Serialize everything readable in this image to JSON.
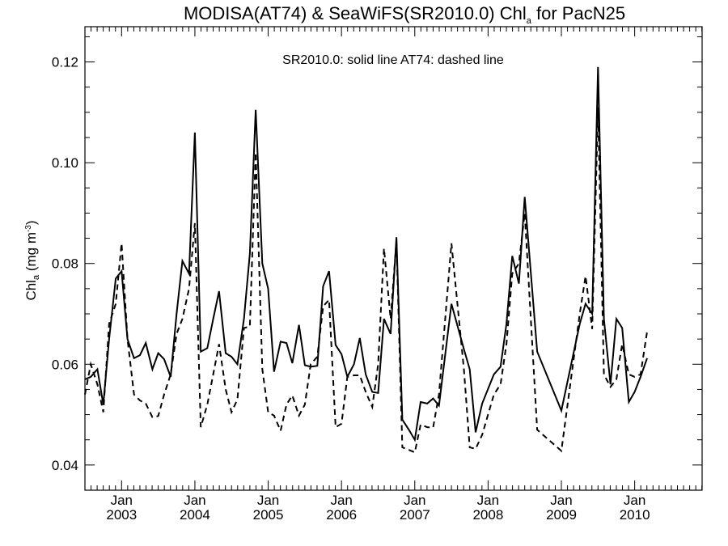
{
  "chart_data": {
    "type": "line",
    "title": {
      "main": "MODISA(AT74) & SeaWiFS(SR2010.0)  Chl",
      "sub": "a",
      "rest": " for PacN25"
    },
    "annotation": "SR2010.0: solid line   AT74: dashed line",
    "ylabel": {
      "main": "Chl",
      "sub": "a",
      "unit": " (mg m",
      "sup": "-3",
      "close": ")"
    },
    "xlim": [
      2002.5,
      2010.92
    ],
    "ylim": [
      0.035,
      0.127
    ],
    "y_ticks": [
      {
        "value": 0.04,
        "label": "0.04"
      },
      {
        "value": 0.06,
        "label": "0.06"
      },
      {
        "value": 0.08,
        "label": "0.08"
      },
      {
        "value": 0.1,
        "label": "0.10"
      },
      {
        "value": 0.12,
        "label": "0.12"
      }
    ],
    "x_ticks": [
      {
        "value": 2003.0,
        "month": "Jan",
        "year": "2003"
      },
      {
        "value": 2004.0,
        "month": "Jan",
        "year": "2004"
      },
      {
        "value": 2005.0,
        "month": "Jan",
        "year": "2005"
      },
      {
        "value": 2006.0,
        "month": "Jan",
        "year": "2006"
      },
      {
        "value": 2007.0,
        "month": "Jan",
        "year": "2007"
      },
      {
        "value": 2008.0,
        "month": "Jan",
        "year": "2008"
      },
      {
        "value": 2009.0,
        "month": "Jan",
        "year": "2009"
      },
      {
        "value": 2010.0,
        "month": "Jan",
        "year": "2010"
      }
    ],
    "series": [
      {
        "name": "SR2010.0",
        "style": "solid",
        "color": "#000000",
        "points": [
          [
            2002.5,
            0.057
          ],
          [
            2002.58,
            0.0575
          ],
          [
            2002.67,
            0.059
          ],
          [
            2002.75,
            0.052
          ],
          [
            2002.83,
            0.065
          ],
          [
            2002.92,
            0.077
          ],
          [
            2003.0,
            0.0785
          ],
          [
            2003.08,
            0.065
          ],
          [
            2003.17,
            0.0612
          ],
          [
            2003.25,
            0.0618
          ],
          [
            2003.33,
            0.0642
          ],
          [
            2003.42,
            0.059
          ],
          [
            2003.5,
            0.0622
          ],
          [
            2003.58,
            0.061
          ],
          [
            2003.67,
            0.0575
          ],
          [
            2003.75,
            0.07
          ],
          [
            2003.83,
            0.0805
          ],
          [
            2003.92,
            0.078
          ],
          [
            2004.0,
            0.106
          ],
          [
            2004.08,
            0.0625
          ],
          [
            2004.17,
            0.0632
          ],
          [
            2004.25,
            0.069
          ],
          [
            2004.33,
            0.0745
          ],
          [
            2004.42,
            0.0622
          ],
          [
            2004.5,
            0.0615
          ],
          [
            2004.58,
            0.06
          ],
          [
            2004.67,
            0.069
          ],
          [
            2004.75,
            0.082
          ],
          [
            2004.83,
            0.1105
          ],
          [
            2004.92,
            0.08
          ],
          [
            2005.0,
            0.075
          ],
          [
            2005.08,
            0.0585
          ],
          [
            2005.17,
            0.0645
          ],
          [
            2005.25,
            0.0642
          ],
          [
            2005.33,
            0.0602
          ],
          [
            2005.42,
            0.0678
          ],
          [
            2005.5,
            0.0598
          ],
          [
            2005.58,
            0.0595
          ],
          [
            2005.67,
            0.0597
          ],
          [
            2005.75,
            0.0755
          ],
          [
            2005.83,
            0.0785
          ],
          [
            2005.92,
            0.0638
          ],
          [
            2006.0,
            0.062
          ],
          [
            2006.08,
            0.0575
          ],
          [
            2006.17,
            0.06
          ],
          [
            2006.25,
            0.0652
          ],
          [
            2006.33,
            0.058
          ],
          [
            2006.42,
            0.0545
          ],
          [
            2006.5,
            0.0543
          ],
          [
            2006.58,
            0.069
          ],
          [
            2006.67,
            0.066
          ],
          [
            2006.75,
            0.0852
          ],
          [
            2006.83,
            0.049
          ],
          [
            2006.92,
            0.047
          ],
          [
            2007.0,
            0.045
          ],
          [
            2007.08,
            0.0525
          ],
          [
            2007.17,
            0.0522
          ],
          [
            2007.25,
            0.0532
          ],
          [
            2007.33,
            0.0518
          ],
          [
            2007.5,
            0.072
          ],
          [
            2007.67,
            0.063
          ],
          [
            2007.75,
            0.059
          ],
          [
            2007.83,
            0.0465
          ],
          [
            2007.92,
            0.0522
          ],
          [
            2008.08,
            0.058
          ],
          [
            2008.17,
            0.0595
          ],
          [
            2008.25,
            0.068
          ],
          [
            2008.33,
            0.0815
          ],
          [
            2008.42,
            0.076
          ],
          [
            2008.5,
            0.0932
          ],
          [
            2008.67,
            0.0625
          ],
          [
            2009.0,
            0.0508
          ],
          [
            2009.25,
            0.068
          ],
          [
            2009.33,
            0.072
          ],
          [
            2009.42,
            0.07
          ],
          [
            2009.5,
            0.119
          ],
          [
            2009.58,
            0.069
          ],
          [
            2009.67,
            0.056
          ],
          [
            2009.75,
            0.069
          ],
          [
            2009.83,
            0.0672
          ],
          [
            2009.92,
            0.0525
          ],
          [
            2010.0,
            0.0545
          ],
          [
            2010.08,
            0.0575
          ],
          [
            2010.17,
            0.0612
          ]
        ]
      },
      {
        "name": "AT74",
        "style": "dashed",
        "color": "#000000",
        "points": [
          [
            2002.5,
            0.054
          ],
          [
            2002.58,
            0.06
          ],
          [
            2002.67,
            0.056
          ],
          [
            2002.75,
            0.0505
          ],
          [
            2002.83,
            0.068
          ],
          [
            2002.92,
            0.072
          ],
          [
            2003.0,
            0.084
          ],
          [
            2003.08,
            0.065
          ],
          [
            2003.17,
            0.054
          ],
          [
            2003.25,
            0.0528
          ],
          [
            2003.33,
            0.0522
          ],
          [
            2003.42,
            0.0495
          ],
          [
            2003.5,
            0.0497
          ],
          [
            2003.58,
            0.054
          ],
          [
            2003.67,
            0.058
          ],
          [
            2003.75,
            0.066
          ],
          [
            2003.83,
            0.069
          ],
          [
            2003.92,
            0.075
          ],
          [
            2004.0,
            0.088
          ],
          [
            2004.08,
            0.0475
          ],
          [
            2004.17,
            0.052
          ],
          [
            2004.25,
            0.058
          ],
          [
            2004.33,
            0.064
          ],
          [
            2004.42,
            0.055
          ],
          [
            2004.5,
            0.0505
          ],
          [
            2004.58,
            0.053
          ],
          [
            2004.67,
            0.0672
          ],
          [
            2004.75,
            0.0675
          ],
          [
            2004.83,
            0.102
          ],
          [
            2004.92,
            0.059
          ],
          [
            2005.0,
            0.0505
          ],
          [
            2005.08,
            0.0498
          ],
          [
            2005.17,
            0.0468
          ],
          [
            2005.25,
            0.052
          ],
          [
            2005.33,
            0.0538
          ],
          [
            2005.42,
            0.0498
          ],
          [
            2005.5,
            0.052
          ],
          [
            2005.58,
            0.06
          ],
          [
            2005.67,
            0.0615
          ],
          [
            2005.75,
            0.0715
          ],
          [
            2005.83,
            0.0728
          ],
          [
            2005.92,
            0.0475
          ],
          [
            2006.0,
            0.0482
          ],
          [
            2006.08,
            0.0575
          ],
          [
            2006.17,
            0.0578
          ],
          [
            2006.25,
            0.0578
          ],
          [
            2006.33,
            0.0545
          ],
          [
            2006.42,
            0.0515
          ],
          [
            2006.5,
            0.06
          ],
          [
            2006.58,
            0.083
          ],
          [
            2006.67,
            0.069
          ],
          [
            2006.75,
            0.0845
          ],
          [
            2006.83,
            0.0435
          ],
          [
            2006.92,
            0.043
          ],
          [
            2007.0,
            0.0425
          ],
          [
            2007.08,
            0.048
          ],
          [
            2007.17,
            0.0475
          ],
          [
            2007.25,
            0.0474
          ],
          [
            2007.33,
            0.054
          ],
          [
            2007.5,
            0.084
          ],
          [
            2007.67,
            0.059
          ],
          [
            2007.75,
            0.0435
          ],
          [
            2007.83,
            0.0432
          ],
          [
            2007.92,
            0.046
          ],
          [
            2008.08,
            0.054
          ],
          [
            2008.17,
            0.056
          ],
          [
            2008.25,
            0.064
          ],
          [
            2008.33,
            0.078
          ],
          [
            2008.42,
            0.08
          ],
          [
            2008.5,
            0.09
          ],
          [
            2008.67,
            0.047
          ],
          [
            2009.0,
            0.0428
          ],
          [
            2009.25,
            0.07
          ],
          [
            2009.33,
            0.0775
          ],
          [
            2009.42,
            0.067
          ],
          [
            2009.5,
            0.111
          ],
          [
            2009.58,
            0.058
          ],
          [
            2009.67,
            0.0555
          ],
          [
            2009.75,
            0.057
          ],
          [
            2009.83,
            0.064
          ],
          [
            2009.92,
            0.058
          ],
          [
            2010.0,
            0.0575
          ],
          [
            2010.08,
            0.058
          ],
          [
            2010.17,
            0.0665
          ]
        ]
      }
    ],
    "grid": false,
    "legend": "none"
  }
}
